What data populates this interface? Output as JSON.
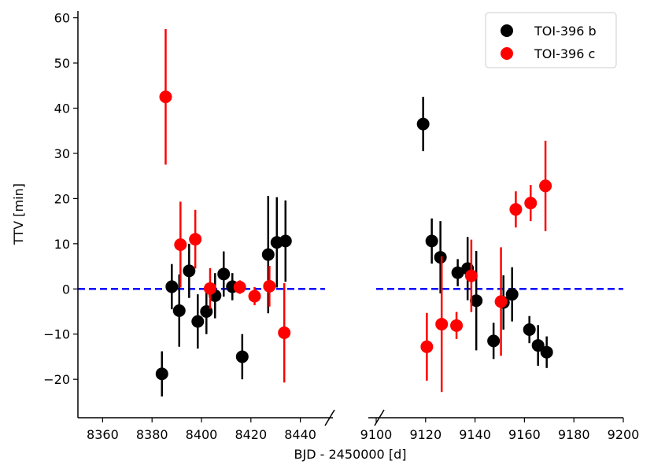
{
  "chart_data": {
    "type": "scatter",
    "title": "",
    "xlabel": "BJD - 2450000 [d]",
    "ylabel": "TTV [min]",
    "ylim": [
      -28.5,
      61.5
    ],
    "panels": [
      {
        "name": "left",
        "xlim": [
          8350,
          8450
        ],
        "ticks": [
          8360,
          8380,
          8400,
          8420,
          8440
        ]
      },
      {
        "name": "right",
        "xlim": [
          9100,
          9200
        ],
        "ticks": [
          9100,
          9120,
          9140,
          9160,
          9180,
          9200
        ]
      }
    ],
    "y_ticks": [
      -20,
      -10,
      0,
      10,
      20,
      30,
      40,
      50,
      60
    ],
    "zero_line": {
      "y": 0,
      "color": "#0000ff",
      "style": "dashed"
    },
    "axis_break": true,
    "legend": {
      "placement": "top-right"
    },
    "series": [
      {
        "name": "TOI-396 b",
        "color": "#000000",
        "points": [
          {
            "x": 8384.0,
            "y": -18.8,
            "err": 5.0
          },
          {
            "x": 8388.0,
            "y": 0.5,
            "err": 5.0
          },
          {
            "x": 8391.0,
            "y": -4.8,
            "err": 8.0
          },
          {
            "x": 8395.0,
            "y": 4.0,
            "err": 6.0
          },
          {
            "x": 8398.5,
            "y": -7.2,
            "err": 6.0
          },
          {
            "x": 8402.0,
            "y": -5.0,
            "err": 5.0
          },
          {
            "x": 8405.5,
            "y": -1.5,
            "err": 5.0
          },
          {
            "x": 8409.0,
            "y": 3.3,
            "err": 5.0
          },
          {
            "x": 8412.5,
            "y": 0.5,
            "err": 3.0
          },
          {
            "x": 8416.5,
            "y": -15.0,
            "err": 5.0
          },
          {
            "x": 8427.0,
            "y": 7.6,
            "err": 13.0
          },
          {
            "x": 8430.5,
            "y": 10.3,
            "err": 10.0
          },
          {
            "x": 8434.0,
            "y": 10.6,
            "err": 9.0
          },
          {
            "x": 9119.0,
            "y": 36.5,
            "err": 6.0
          },
          {
            "x": 9122.5,
            "y": 10.6,
            "err": 5.0
          },
          {
            "x": 9126.0,
            "y": 7.0,
            "err": 8.0
          },
          {
            "x": 9133.0,
            "y": 3.6,
            "err": 3.0
          },
          {
            "x": 9137.0,
            "y": 4.5,
            "err": 7.0
          },
          {
            "x": 9140.5,
            "y": -2.6,
            "err": 11.0
          },
          {
            "x": 9147.5,
            "y": -11.5,
            "err": 4.0
          },
          {
            "x": 9151.5,
            "y": -3.0,
            "err": 6.0
          },
          {
            "x": 9155.0,
            "y": -1.2,
            "err": 6.0
          },
          {
            "x": 9162.0,
            "y": -9.0,
            "err": 3.0
          },
          {
            "x": 9165.5,
            "y": -12.5,
            "err": 4.5
          },
          {
            "x": 9169.0,
            "y": -14.0,
            "err": 3.5
          }
        ]
      },
      {
        "name": "TOI-396 c",
        "color": "#ff0000",
        "points": [
          {
            "x": 8385.5,
            "y": 42.5,
            "err": 15.0
          },
          {
            "x": 8391.5,
            "y": 9.8,
            "err": 9.5
          },
          {
            "x": 8397.5,
            "y": 11.0,
            "err": 6.5
          },
          {
            "x": 8403.5,
            "y": 0.1,
            "err": 4.5
          },
          {
            "x": 8415.5,
            "y": 0.4,
            "err": 1.5
          },
          {
            "x": 8421.5,
            "y": -1.6,
            "err": 2.0
          },
          {
            "x": 8427.5,
            "y": 0.6,
            "err": 4.5
          },
          {
            "x": 8433.5,
            "y": -9.7,
            "err": 11.0
          },
          {
            "x": 9120.5,
            "y": -12.8,
            "err": 7.5
          },
          {
            "x": 9126.5,
            "y": -7.8,
            "err": 15.0
          },
          {
            "x": 9132.5,
            "y": -8.1,
            "err": 3.0
          },
          {
            "x": 9138.5,
            "y": 2.9,
            "err": 8.0
          },
          {
            "x": 9150.5,
            "y": -2.8,
            "err": 12.0
          },
          {
            "x": 9156.5,
            "y": 17.6,
            "err": 4.0
          },
          {
            "x": 9162.5,
            "y": 19.0,
            "err": 4.0
          },
          {
            "x": 9168.5,
            "y": 22.8,
            "err": 10.0
          }
        ]
      }
    ]
  }
}
